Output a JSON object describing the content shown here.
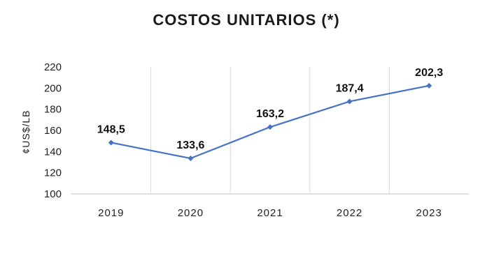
{
  "chart_data": {
    "type": "line",
    "title": "COSTOS UNITARIOS (*)",
    "xlabel": "",
    "ylabel": "¢US$/LB",
    "categories": [
      "2019",
      "2020",
      "2021",
      "2022",
      "2023"
    ],
    "series": [
      {
        "values": [
          148.5,
          133.6,
          163.2,
          187.4,
          202.3
        ],
        "labels": [
          "148,5",
          "133,6",
          "163,2",
          "187,4",
          "202,3"
        ],
        "color": "#4472C4"
      }
    ],
    "ylim": [
      100,
      220
    ],
    "yticks": [
      100,
      120,
      140,
      160,
      180,
      200,
      220
    ],
    "grid": "vertical",
    "legend": "none"
  }
}
